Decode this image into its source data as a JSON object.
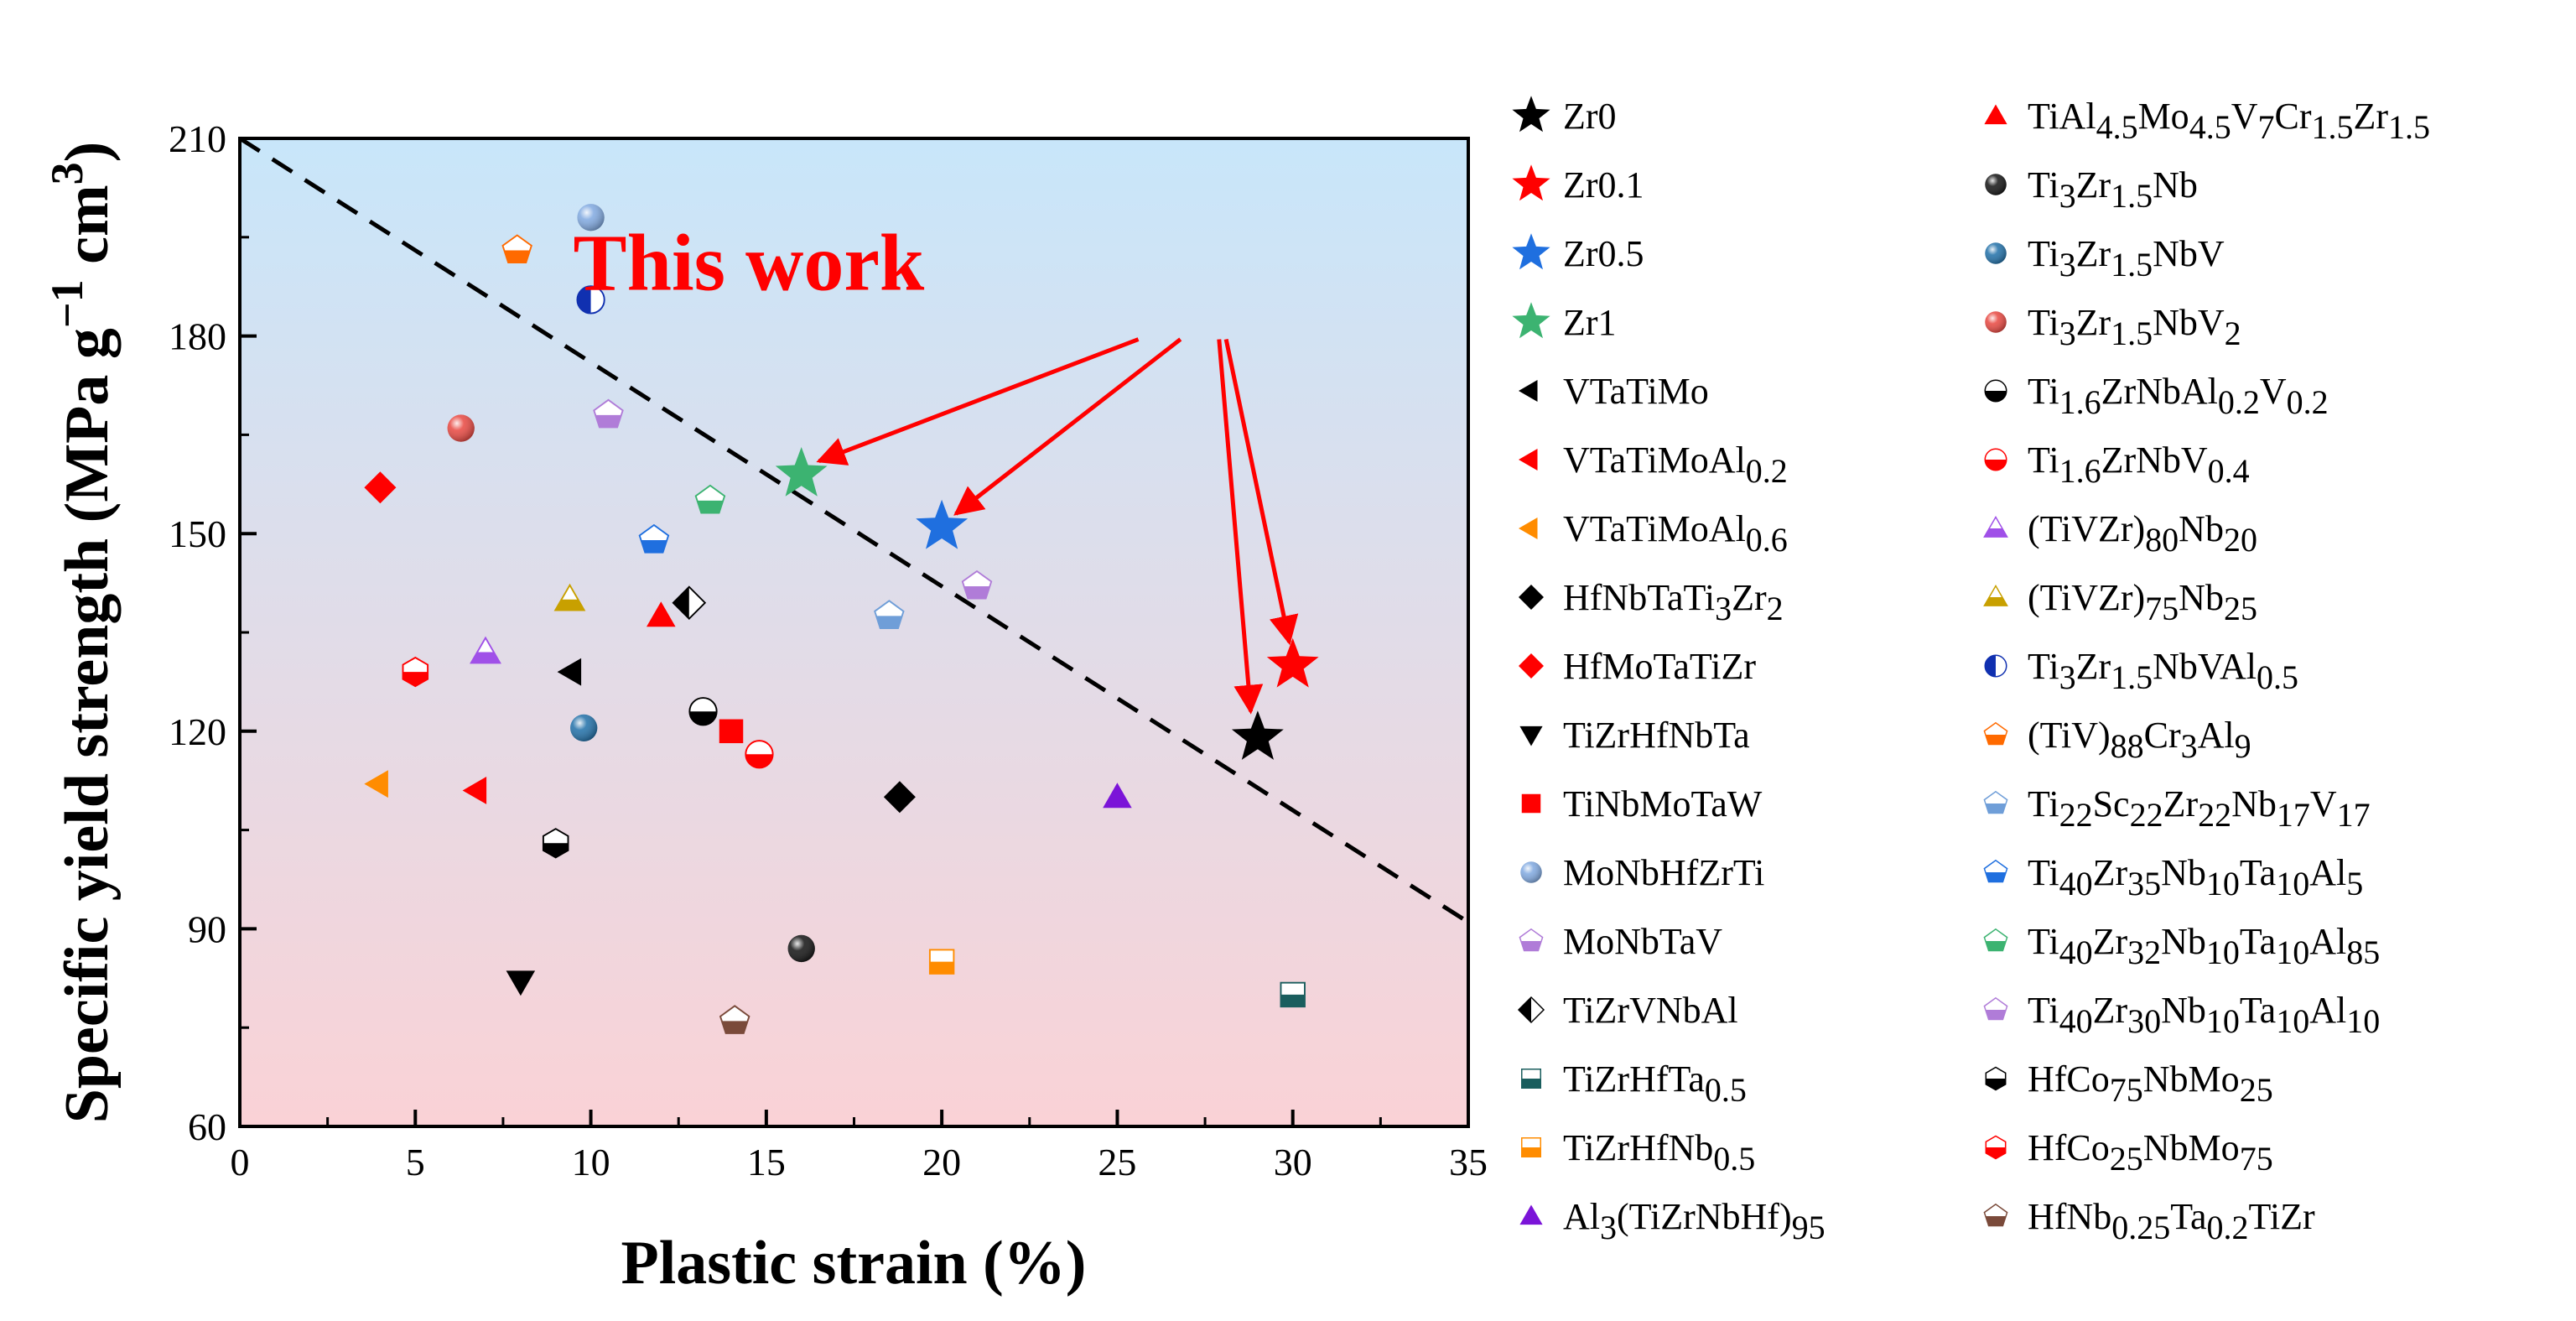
{
  "chart_data": {
    "type": "scatter",
    "title": "",
    "xlabel": "Plastic strain (%)",
    "ylabel": "Specific yield strength (MPa g",
    "ylabel_sup1": "−1",
    "ylabel_mid": " cm",
    "ylabel_sup2": "3",
    "ylabel_end": ")",
    "xlim": [
      0,
      35
    ],
    "ylim": [
      60,
      210
    ],
    "x_ticks": [
      0,
      5,
      10,
      15,
      20,
      25,
      30,
      35
    ],
    "y_ticks": [
      60,
      90,
      120,
      150,
      180,
      210
    ],
    "trend_line": {
      "x": [
        0,
        35
      ],
      "y": [
        210,
        91
      ],
      "style": "dashed",
      "color": "#000000"
    },
    "annotation": {
      "text": "This work",
      "color": "#ff0000",
      "x": 14.5,
      "y": 187
    },
    "arrows": [
      {
        "from": [
          25.6,
          179.5
        ],
        "to": [
          16.5,
          161
        ]
      },
      {
        "from": [
          26.8,
          179.5
        ],
        "to": [
          20.4,
          153
        ]
      },
      {
        "from": [
          27.9,
          179.5
        ],
        "to": [
          28.8,
          123
        ]
      },
      {
        "from": [
          28.1,
          179.5
        ],
        "to": [
          29.9,
          133.5
        ]
      }
    ],
    "series": [
      {
        "name": "Zr0",
        "sub": [],
        "marker": "star",
        "color": "#000000",
        "points": [
          [
            29,
            119
          ]
        ]
      },
      {
        "name": "Zr0.1",
        "sub": [],
        "marker": "star",
        "color": "#ff0000",
        "points": [
          [
            30,
            130
          ]
        ]
      },
      {
        "name": "Zr0.5",
        "sub": [],
        "marker": "star",
        "color": "#1f6fdf",
        "points": [
          [
            20,
            151
          ]
        ]
      },
      {
        "name": "Zr1",
        "sub": [],
        "marker": "star",
        "color": "#3cb371",
        "points": [
          [
            16,
            159
          ]
        ]
      },
      {
        "name": "VTaTiMo",
        "sub": [],
        "marker": "tri-left",
        "color": "#000000",
        "points": [
          [
            9.5,
            129
          ]
        ]
      },
      {
        "name": "VTaTiMoAl0.2",
        "sub": [
          "0.2"
        ],
        "marker": "tri-left",
        "color": "#ff0000",
        "points": [
          [
            6.8,
            111
          ]
        ]
      },
      {
        "name": "VTaTiMoAl0.6",
        "sub": [
          "0.6"
        ],
        "marker": "tri-left",
        "color": "#ff8c00",
        "points": [
          [
            4,
            112
          ]
        ]
      },
      {
        "name": "HfNbTaTi3Zr2",
        "sub": [
          "3",
          "2"
        ],
        "marker": "diamond",
        "color": "#000000",
        "points": [
          [
            18.8,
            110
          ]
        ]
      },
      {
        "name": "HfMoTaTiZr",
        "sub": [],
        "marker": "diamond",
        "color": "#ff0000",
        "points": [
          [
            4,
            157
          ]
        ]
      },
      {
        "name": "TiZrHfNbTa",
        "sub": [],
        "marker": "tri-down",
        "color": "#000000",
        "points": [
          [
            8,
            82
          ]
        ]
      },
      {
        "name": "TiNbMoTaW",
        "sub": [],
        "marker": "square",
        "color": "#ff0000",
        "points": [
          [
            14,
            120
          ]
        ]
      },
      {
        "name": "MoNbHfZrTi",
        "sub": [],
        "marker": "sphere",
        "color": "#7fa8e0",
        "points": [
          [
            10,
            198
          ]
        ]
      },
      {
        "name": "MoNbTaV",
        "sub": [],
        "marker": "pentagon-half",
        "color": "#b07cd8",
        "points": [
          [
            21,
            142
          ]
        ]
      },
      {
        "name": "TiZrVNbAl",
        "sub": [],
        "marker": "diamond-half",
        "color": "#000000",
        "points": [
          [
            12.8,
            139.5
          ]
        ]
      },
      {
        "name": "TiZrHfTa0.5",
        "sub": [
          "0.5"
        ],
        "marker": "square-half",
        "color": "#1a5e5e",
        "points": [
          [
            30,
            80
          ]
        ]
      },
      {
        "name": "TiZrHfNb0.5",
        "sub": [
          "0.5"
        ],
        "marker": "square-half",
        "color": "#ff8c00",
        "points": [
          [
            20,
            85
          ]
        ]
      },
      {
        "name": "Al3(TiZrNbHf)95",
        "sub": [
          "3",
          "95"
        ],
        "marker": "tri-up",
        "color": "#7b14d8",
        "points": [
          [
            25,
            110
          ]
        ]
      },
      {
        "name": "TiAl4.5Mo4.5V7Cr1.5Zr1.5",
        "sub": [
          "4.5",
          "4.5",
          "7",
          "1.5",
          "1.5"
        ],
        "marker": "tri-up",
        "color": "#ff0000",
        "points": [
          [
            12,
            137.5
          ]
        ]
      },
      {
        "name": "Ti3Zr1.5Nb",
        "sub": [
          "3",
          "1.5"
        ],
        "marker": "sphere",
        "color": "#111111",
        "points": [
          [
            16,
            87
          ]
        ]
      },
      {
        "name": "Ti3Zr1.5NbV",
        "sub": [
          "3",
          "1.5"
        ],
        "marker": "sphere",
        "color": "#1f6fa8",
        "points": [
          [
            9.8,
            120.5
          ]
        ]
      },
      {
        "name": "Ti3Zr1.5NbV2",
        "sub": [
          "3",
          "1.5",
          "2"
        ],
        "marker": "sphere",
        "color": "#e8463f",
        "points": [
          [
            6.3,
            166
          ]
        ]
      },
      {
        "name": "Ti1.6ZrNbAl0.2V0.2",
        "sub": [
          "1.6",
          "0.2",
          "0.2"
        ],
        "marker": "circle-half",
        "color": "#000000",
        "points": [
          [
            13.2,
            123
          ]
        ]
      },
      {
        "name": "Ti1.6ZrNbV0.4",
        "sub": [
          "1.6",
          "0.4"
        ],
        "marker": "circle-half",
        "color": "#ff0000",
        "points": [
          [
            14.8,
            116.5
          ]
        ]
      },
      {
        "name": "(TiVZr)80Nb20",
        "sub": [
          "80",
          "20"
        ],
        "marker": "tri-up-half",
        "color": "#a050e8",
        "points": [
          [
            7,
            132
          ]
        ]
      },
      {
        "name": "(TiVZr)75Nb25",
        "sub": [
          "75",
          "25"
        ],
        "marker": "tri-up-half",
        "color": "#c8a000",
        "points": [
          [
            9.4,
            140
          ]
        ]
      },
      {
        "name": "Ti3Zr1.5NbVAl0.5",
        "sub": [
          "3",
          "1.5",
          "0.5"
        ],
        "marker": "circle-vhalf",
        "color": "#1030b0",
        "points": [
          [
            10,
            185.5
          ]
        ]
      },
      {
        "name": "(TiV)88Cr3Al9",
        "sub": [
          "88",
          "3",
          "9"
        ],
        "marker": "pentagon-half",
        "color": "#ff6a00",
        "points": [
          [
            7.9,
            193
          ]
        ]
      },
      {
        "name": "Ti22Sc22Zr22Nb17V17",
        "sub": [
          "22",
          "22",
          "22",
          "17",
          "17"
        ],
        "marker": "pentagon-half",
        "color": "#6f9ed8",
        "points": [
          [
            18.5,
            137.5
          ]
        ]
      },
      {
        "name": "Ti40Zr35Nb10Ta10Al5",
        "sub": [
          "40",
          "35",
          "10",
          "10",
          "5"
        ],
        "marker": "pentagon-half",
        "color": "#1f6fdf",
        "points": [
          [
            11.8,
            149
          ]
        ]
      },
      {
        "name": "Ti40Zr32Nb10Ta10Al85",
        "sub": [
          "40",
          "32",
          "10",
          "10",
          "85"
        ],
        "marker": "pentagon-half",
        "color": "#3cb371",
        "points": [
          [
            13.4,
            155
          ]
        ]
      },
      {
        "name": "Ti40Zr30Nb10Ta10Al10",
        "sub": [
          "40",
          "30",
          "10",
          "10",
          "10"
        ],
        "marker": "pentagon-half",
        "color": "#b07cd8",
        "points": [
          [
            10.5,
            168
          ]
        ]
      },
      {
        "name": "HfCo75NbMo25",
        "sub": [
          "75",
          "25"
        ],
        "marker": "hexagon-half",
        "color": "#000000",
        "points": [
          [
            9,
            103
          ]
        ]
      },
      {
        "name": "HfCo25NbMo75",
        "sub": [
          "25",
          "75"
        ],
        "marker": "hexagon-half",
        "color": "#ff0000",
        "points": [
          [
            5,
            129
          ]
        ]
      },
      {
        "name": "HfNb0.25Ta0.2TiZr",
        "sub": [
          "0.25",
          "0.2"
        ],
        "marker": "pentagon-half",
        "color": "#7a4a3a",
        "points": [
          [
            14.1,
            76
          ]
        ]
      }
    ]
  },
  "gradient": {
    "top": "#c8e6fa",
    "bottom": "#fad2d6"
  },
  "legend_columns": 2,
  "legend_rows": 17
}
